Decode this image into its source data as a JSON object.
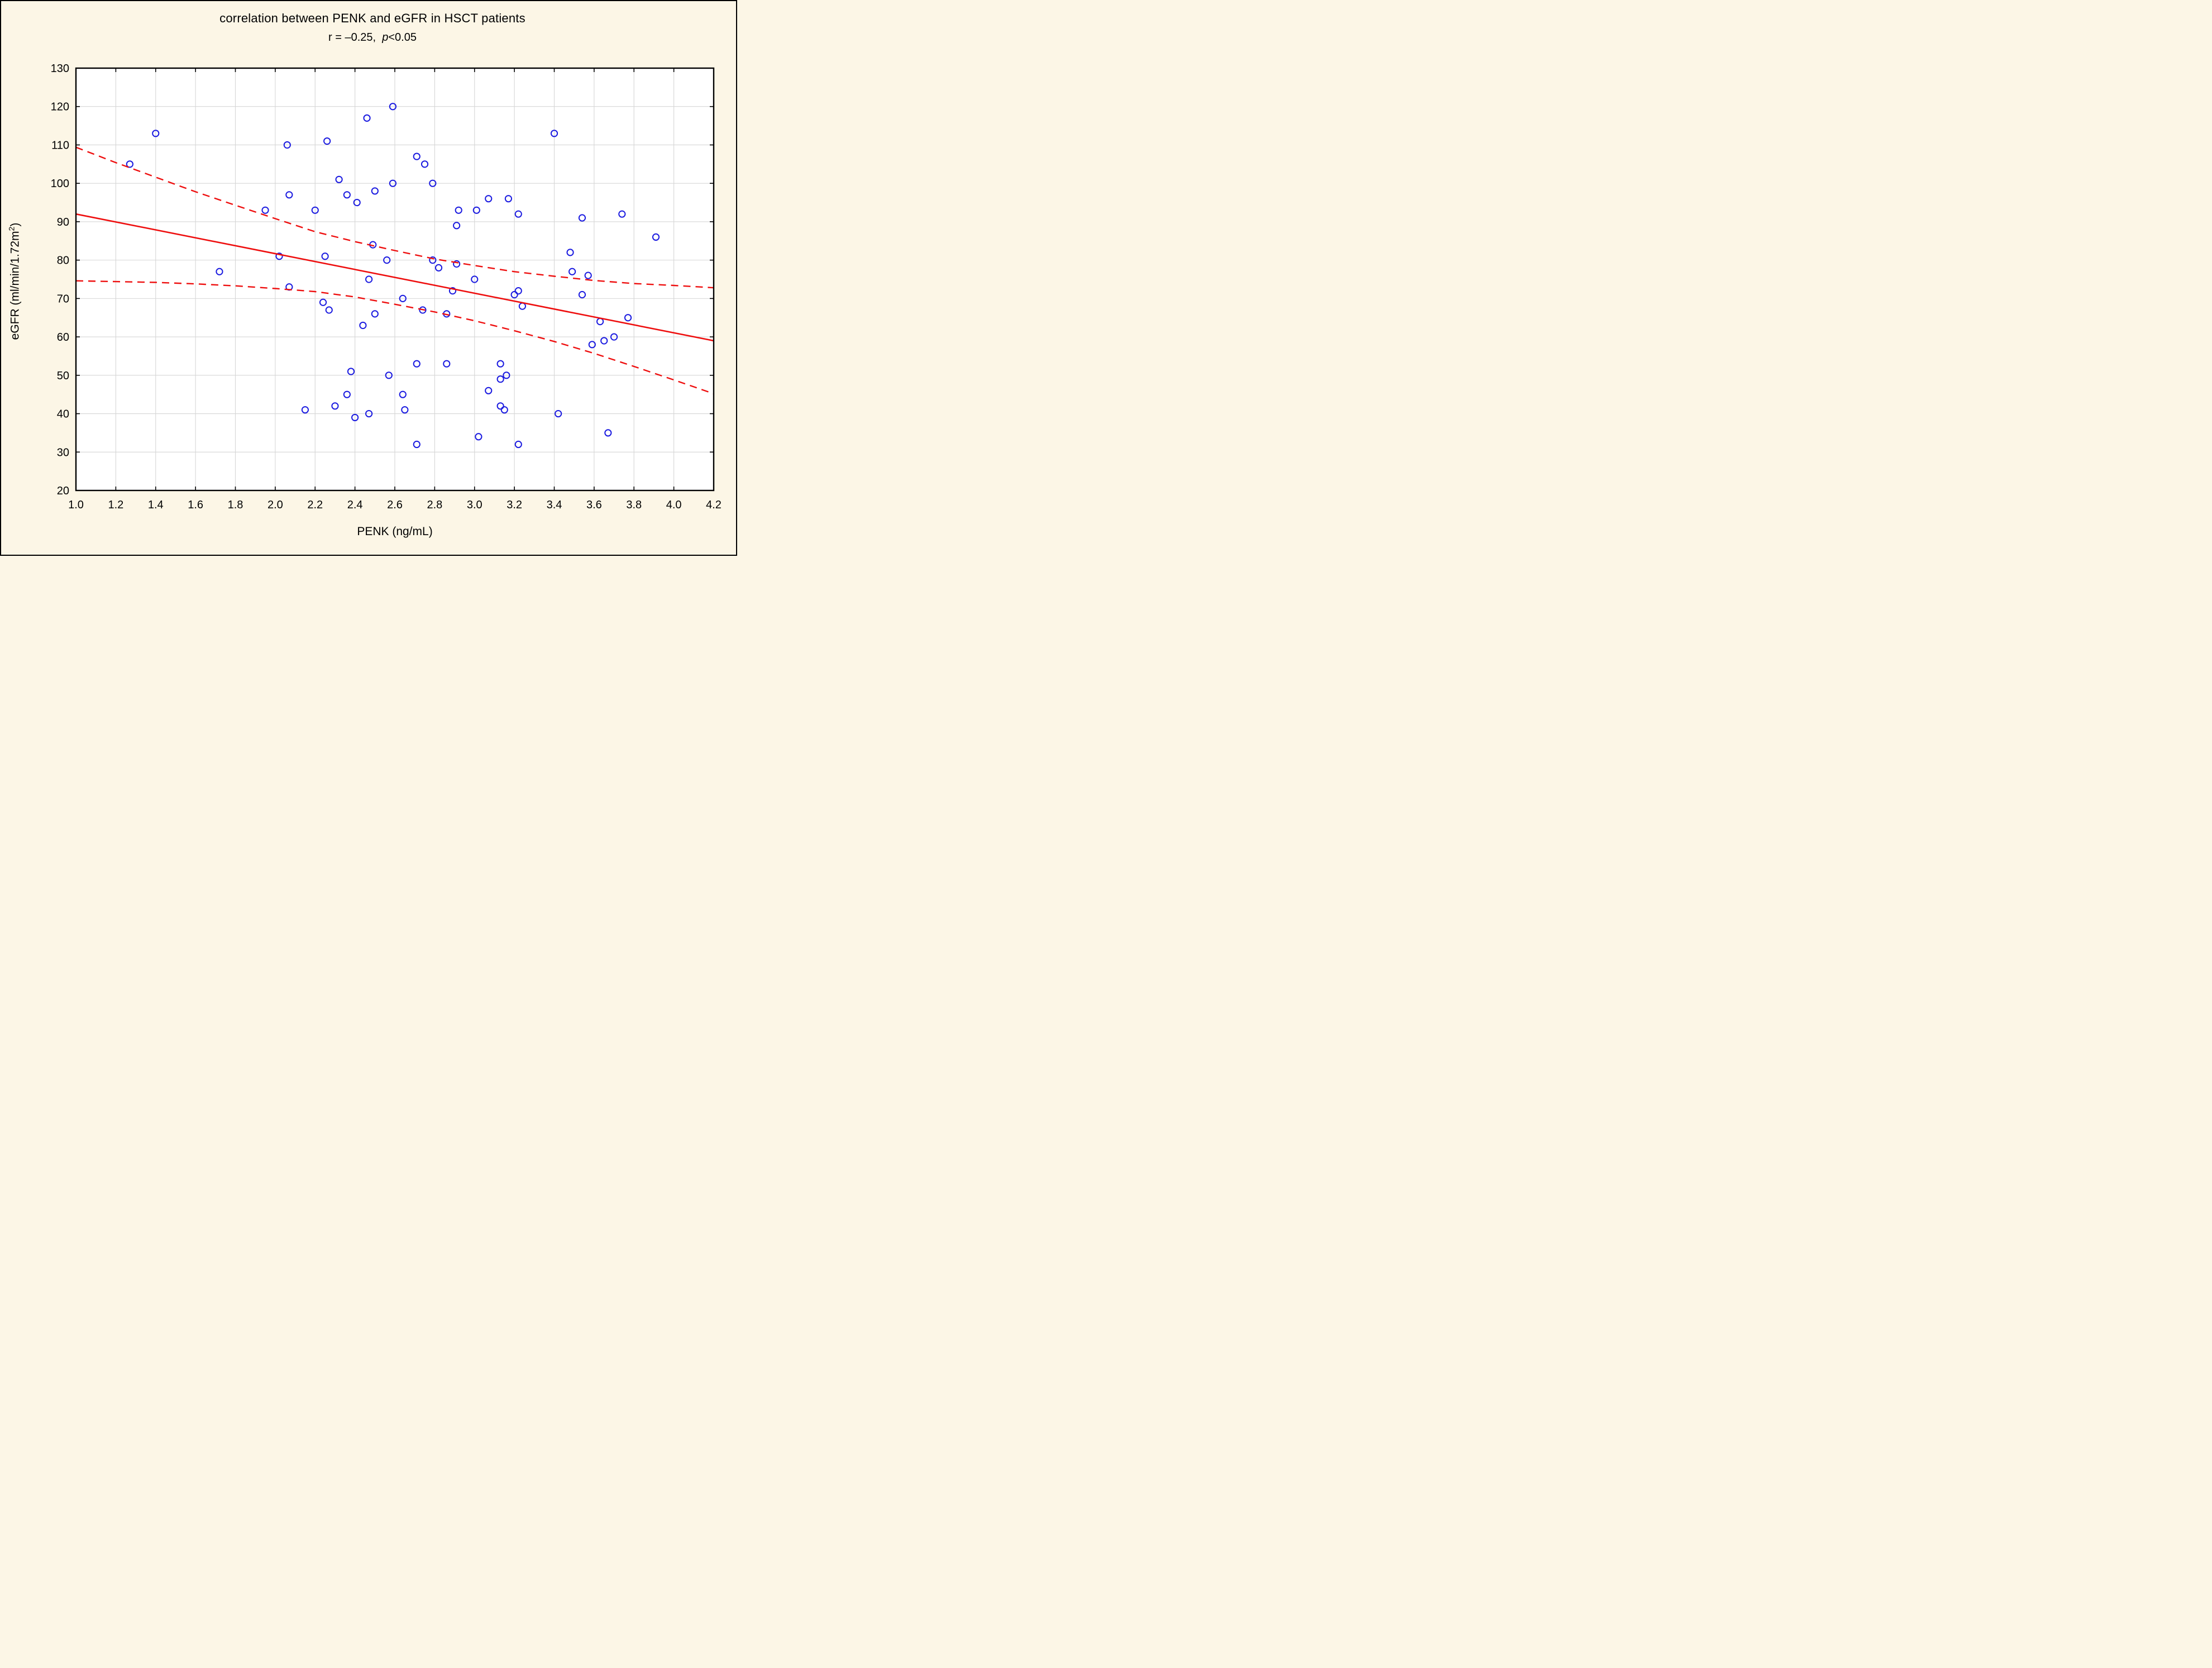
{
  "chart_data": {
    "type": "scatter",
    "title": "correlation between PENK and eGFR in HSCT patients",
    "subtitle_r": "r =  –0.25,",
    "subtitle_p": "p",
    "subtitle_tail": "<0.05",
    "xlabel": "PENK (ng/mL)",
    "ylabel_pre": "eGFR (ml/min/1.72m",
    "ylabel_sup": "2",
    "ylabel_post": ")",
    "xlim": [
      1.0,
      4.2
    ],
    "ylim": [
      20,
      130
    ],
    "xticks": [
      "1.0",
      "1.2",
      "1.4",
      "1.6",
      "1.8",
      "2.0",
      "2.2",
      "2.4",
      "2.6",
      "2.8",
      "3.0",
      "3.2",
      "3.4",
      "3.6",
      "3.8",
      "4.0",
      "4.2"
    ],
    "yticks": [
      "20",
      "30",
      "40",
      "50",
      "60",
      "70",
      "80",
      "90",
      "100",
      "110",
      "120",
      "130"
    ],
    "grid": true,
    "legend": "none",
    "points": [
      [
        1.27,
        105
      ],
      [
        1.4,
        113
      ],
      [
        1.72,
        77
      ],
      [
        1.95,
        93
      ],
      [
        2.02,
        81
      ],
      [
        2.06,
        110
      ],
      [
        2.07,
        97
      ],
      [
        2.07,
        73
      ],
      [
        2.15,
        41
      ],
      [
        2.2,
        93
      ],
      [
        2.24,
        69
      ],
      [
        2.25,
        81
      ],
      [
        2.26,
        111
      ],
      [
        2.27,
        67
      ],
      [
        2.3,
        42
      ],
      [
        2.32,
        101
      ],
      [
        2.36,
        97
      ],
      [
        2.36,
        45
      ],
      [
        2.38,
        51
      ],
      [
        2.4,
        39
      ],
      [
        2.41,
        95
      ],
      [
        2.44,
        63
      ],
      [
        2.46,
        117
      ],
      [
        2.47,
        75
      ],
      [
        2.47,
        40
      ],
      [
        2.49,
        84
      ],
      [
        2.5,
        98
      ],
      [
        2.5,
        66
      ],
      [
        2.56,
        80
      ],
      [
        2.57,
        50
      ],
      [
        2.59,
        120
      ],
      [
        2.59,
        100
      ],
      [
        2.64,
        70
      ],
      [
        2.64,
        45
      ],
      [
        2.65,
        41
      ],
      [
        2.71,
        107
      ],
      [
        2.71,
        53
      ],
      [
        2.71,
        32
      ],
      [
        2.74,
        67
      ],
      [
        2.75,
        105
      ],
      [
        2.79,
        100
      ],
      [
        2.79,
        80
      ],
      [
        2.82,
        78
      ],
      [
        2.86,
        66
      ],
      [
        2.86,
        53
      ],
      [
        2.89,
        72
      ],
      [
        2.91,
        89
      ],
      [
        2.91,
        79
      ],
      [
        2.92,
        93
      ],
      [
        3.0,
        75
      ],
      [
        3.01,
        93
      ],
      [
        3.02,
        34
      ],
      [
        3.07,
        96
      ],
      [
        3.07,
        46
      ],
      [
        3.13,
        53
      ],
      [
        3.13,
        49
      ],
      [
        3.13,
        42
      ],
      [
        3.15,
        41
      ],
      [
        3.16,
        50
      ],
      [
        3.17,
        96
      ],
      [
        3.2,
        71
      ],
      [
        3.22,
        92
      ],
      [
        3.22,
        72
      ],
      [
        3.22,
        32
      ],
      [
        3.24,
        68
      ],
      [
        3.4,
        113
      ],
      [
        3.42,
        40
      ],
      [
        3.48,
        82
      ],
      [
        3.49,
        77
      ],
      [
        3.54,
        91
      ],
      [
        3.54,
        71
      ],
      [
        3.57,
        76
      ],
      [
        3.59,
        58
      ],
      [
        3.63,
        64
      ],
      [
        3.65,
        59
      ],
      [
        3.67,
        35
      ],
      [
        3.7,
        60
      ],
      [
        3.74,
        92
      ],
      [
        3.77,
        65
      ],
      [
        3.91,
        86
      ]
    ],
    "regression_line": {
      "x": [
        1.0,
        4.2
      ],
      "y": [
        92,
        59
      ]
    },
    "ci_upper": {
      "x": [
        1.0,
        1.2,
        1.4,
        1.6,
        1.8,
        2.0,
        2.2,
        2.4,
        2.6,
        2.8,
        3.0,
        3.2,
        3.4,
        3.6,
        3.8,
        4.0,
        4.2
      ],
      "y": [
        109.4,
        105.4,
        101.6,
        97.8,
        94.3,
        90.8,
        87.4,
        84.8,
        82.5,
        80.3,
        78.6,
        77.0,
        75.8,
        74.7,
        73.9,
        73.4,
        72.8
      ]
    },
    "ci_lower": {
      "x": [
        1.0,
        1.2,
        1.4,
        1.6,
        1.8,
        2.0,
        2.2,
        2.4,
        2.6,
        2.8,
        3.0,
        3.2,
        3.4,
        3.6,
        3.8,
        4.0,
        4.2
      ],
      "y": [
        74.6,
        74.4,
        74.2,
        73.8,
        73.3,
        72.6,
        71.8,
        70.4,
        68.5,
        66.5,
        64.2,
        61.6,
        58.8,
        55.7,
        52.3,
        48.8,
        45.2
      ]
    },
    "colors": {
      "point": "#1b1be0",
      "line": "#ee0f0f",
      "grid": "#d6d6d6",
      "frame": "#000000",
      "plot_background": "#ffffff",
      "figure_background": "#fcf6e6",
      "text": "#000000"
    },
    "layout": {
      "plot_left": 134,
      "plot_right": 1276,
      "plot_top": 120,
      "plot_bottom": 876,
      "point_radius": 5.6,
      "tick_length": 7
    }
  }
}
